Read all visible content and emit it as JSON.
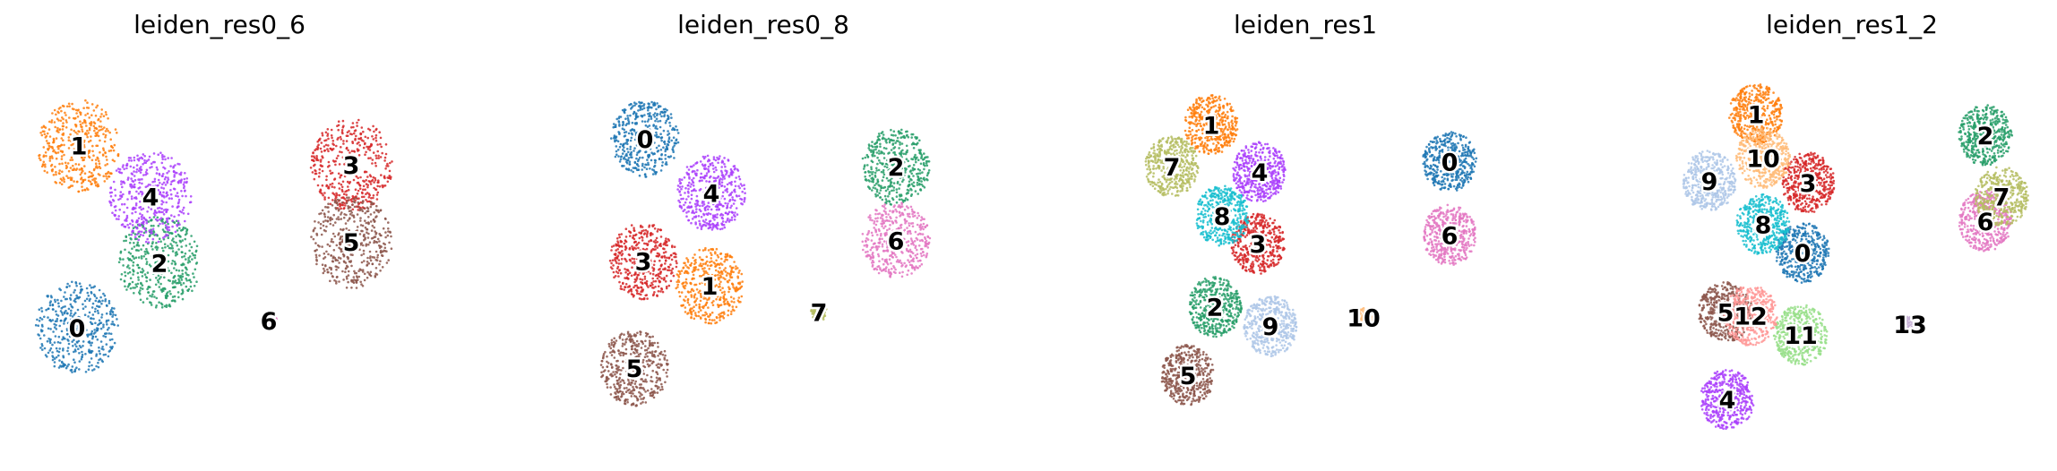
{
  "chart_data": [
    {
      "type": "scatter",
      "title": "leiden_res0_6",
      "clusters": [
        {
          "label": "0",
          "color": "#1f77b4",
          "centroid": [
            -8.2,
            -4.4
          ]
        },
        {
          "label": "1",
          "color": "#ff7f0e",
          "centroid": [
            -8.1,
            6.0
          ]
        },
        {
          "label": "2",
          "color": "#279e68",
          "centroid": [
            -3.6,
            -0.7
          ]
        },
        {
          "label": "3",
          "color": "#d62728",
          "centroid": [
            7.1,
            4.9
          ]
        },
        {
          "label": "4",
          "color": "#aa40fc",
          "centroid": [
            -4.1,
            3.1
          ]
        },
        {
          "label": "5",
          "color": "#8c564b",
          "centroid": [
            7.1,
            0.5
          ]
        },
        {
          "label": "6",
          "color": "#e377c2",
          "centroid": [
            2.5,
            -4.0
          ]
        }
      ]
    },
    {
      "type": "scatter",
      "title": "leiden_res0_8",
      "clusters": [
        {
          "label": "0",
          "color": "#1f77b4",
          "centroid": [
            -7.0,
            6.4
          ]
        },
        {
          "label": "1",
          "color": "#ff7f0e",
          "centroid": [
            -3.4,
            -2.0
          ]
        },
        {
          "label": "2",
          "color": "#279e68",
          "centroid": [
            7.0,
            4.8
          ]
        },
        {
          "label": "3",
          "color": "#d62728",
          "centroid": [
            -7.1,
            -0.6
          ]
        },
        {
          "label": "4",
          "color": "#aa40fc",
          "centroid": [
            -3.3,
            3.3
          ]
        },
        {
          "label": "5",
          "color": "#8c564b",
          "centroid": [
            -7.6,
            -6.7
          ]
        },
        {
          "label": "6",
          "color": "#e377c2",
          "centroid": [
            7.0,
            0.6
          ]
        },
        {
          "label": "7",
          "color": "#b5bd61",
          "centroid": [
            2.7,
            -3.5
          ]
        }
      ]
    },
    {
      "type": "scatter",
      "title": "leiden_res1",
      "clusters": [
        {
          "label": "0",
          "color": "#1f77b4",
          "centroid": [
            7.4,
            5.1
          ]
        },
        {
          "label": "1",
          "color": "#ff7f0e",
          "centroid": [
            -5.9,
            7.2
          ]
        },
        {
          "label": "2",
          "color": "#279e68",
          "centroid": [
            -5.7,
            -3.2
          ]
        },
        {
          "label": "3",
          "color": "#d62728",
          "centroid": [
            -3.3,
            0.4
          ]
        },
        {
          "label": "4",
          "color": "#aa40fc",
          "centroid": [
            -3.2,
            4.5
          ]
        },
        {
          "label": "5",
          "color": "#8c564b",
          "centroid": [
            -7.2,
            -7.1
          ]
        },
        {
          "label": "6",
          "color": "#e377c2",
          "centroid": [
            7.4,
            0.9
          ]
        },
        {
          "label": "7",
          "color": "#b5bd61",
          "centroid": [
            -8.1,
            4.8
          ]
        },
        {
          "label": "8",
          "color": "#17becf",
          "centroid": [
            -5.3,
            2.0
          ]
        },
        {
          "label": "9",
          "color": "#aec7e8",
          "centroid": [
            -2.6,
            -4.3
          ]
        },
        {
          "label": "10",
          "color": "#ffbb78",
          "centroid": [
            2.6,
            -3.8
          ]
        }
      ]
    },
    {
      "type": "scatter",
      "title": "leiden_res1_2",
      "clusters": [
        {
          "label": "0",
          "color": "#1f77b4",
          "centroid": [
            -3.4,
            -0.1
          ]
        },
        {
          "label": "1",
          "color": "#ff7f0e",
          "centroid": [
            -6.0,
            7.8
          ]
        },
        {
          "label": "2",
          "color": "#279e68",
          "centroid": [
            6.8,
            6.6
          ]
        },
        {
          "label": "3",
          "color": "#d62728",
          "centroid": [
            -3.1,
            3.9
          ]
        },
        {
          "label": "4",
          "color": "#aa40fc",
          "centroid": [
            -7.6,
            -8.5
          ]
        },
        {
          "label": "5",
          "color": "#8c564b",
          "centroid": [
            -7.7,
            -3.5
          ]
        },
        {
          "label": "6",
          "color": "#e377c2",
          "centroid": [
            6.8,
            1.7
          ]
        },
        {
          "label": "7",
          "color": "#b5bd61",
          "centroid": [
            7.7,
            3.1
          ]
        },
        {
          "label": "8",
          "color": "#17becf",
          "centroid": [
            -5.6,
            1.5
          ]
        },
        {
          "label": "9",
          "color": "#aec7e8",
          "centroid": [
            -8.6,
            4.0
          ]
        },
        {
          "label": "10",
          "color": "#ffbb78",
          "centroid": [
            -5.6,
            5.3
          ]
        },
        {
          "label": "11",
          "color": "#98df8a",
          "centroid": [
            -3.5,
            -4.8
          ]
        },
        {
          "label": "12",
          "color": "#ff9896",
          "centroid": [
            -6.3,
            -3.7
          ]
        },
        {
          "label": "13",
          "color": "#c5b0d5",
          "centroid": [
            2.6,
            -4.2
          ]
        }
      ]
    }
  ]
}
